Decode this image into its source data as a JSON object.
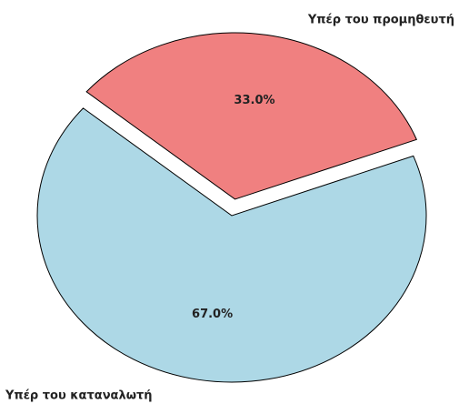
{
  "chart_data": {
    "type": "pie",
    "categories": [
      "Υπέρ του προμηθευτή",
      "Υπέρ του καταναλωτή"
    ],
    "values": [
      33.0,
      67.0
    ],
    "value_labels": [
      "33.0%",
      "67.0%"
    ],
    "colors": [
      "#f08080",
      "#add8e6"
    ],
    "explode": [
      0.1,
      0
    ],
    "startangle": 21
  }
}
